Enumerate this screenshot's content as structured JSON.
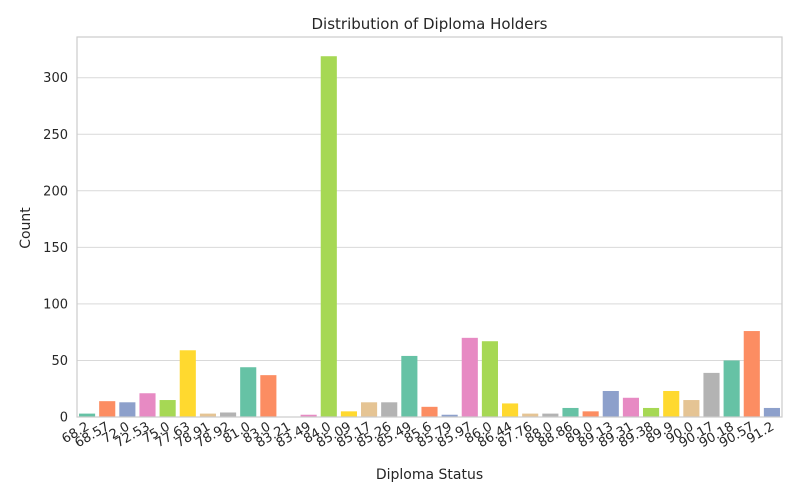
{
  "chart_data": {
    "type": "bar",
    "title": "Distribution of Diploma Holders",
    "xlabel": "Diploma Status",
    "ylabel": "Count",
    "ylim": [
      0,
      336
    ],
    "yticks": [
      0,
      50,
      100,
      150,
      200,
      250,
      300
    ],
    "grid": "horizontal",
    "categories": [
      "68.2",
      "68.57",
      "72.0",
      "72.53",
      "75.0",
      "77.63",
      "78.91",
      "78.92",
      "81.0",
      "83.0",
      "83.21",
      "83.49",
      "84.0",
      "85.09",
      "85.17",
      "85.26",
      "85.49",
      "85.6",
      "85.79",
      "85.97",
      "86.0",
      "86.44",
      "87.76",
      "88.0",
      "88.86",
      "89.0",
      "89.13",
      "89.31",
      "89.38",
      "89.9",
      "90.0",
      "90.17",
      "90.18",
      "90.57",
      "91.2"
    ],
    "values": [
      3,
      14,
      13,
      21,
      15,
      59,
      3,
      4,
      44,
      37,
      0,
      2,
      319,
      5,
      13,
      13,
      54,
      9,
      2,
      70,
      67,
      12,
      3,
      3,
      8,
      5,
      23,
      17,
      8,
      23,
      15,
      39,
      50,
      76,
      8
    ],
    "colors": [
      "#66c2a5",
      "#fc8d62",
      "#8da0cb",
      "#e78ac3",
      "#a6d854",
      "#ffd92f",
      "#e5c494",
      "#b3b3b3"
    ]
  }
}
